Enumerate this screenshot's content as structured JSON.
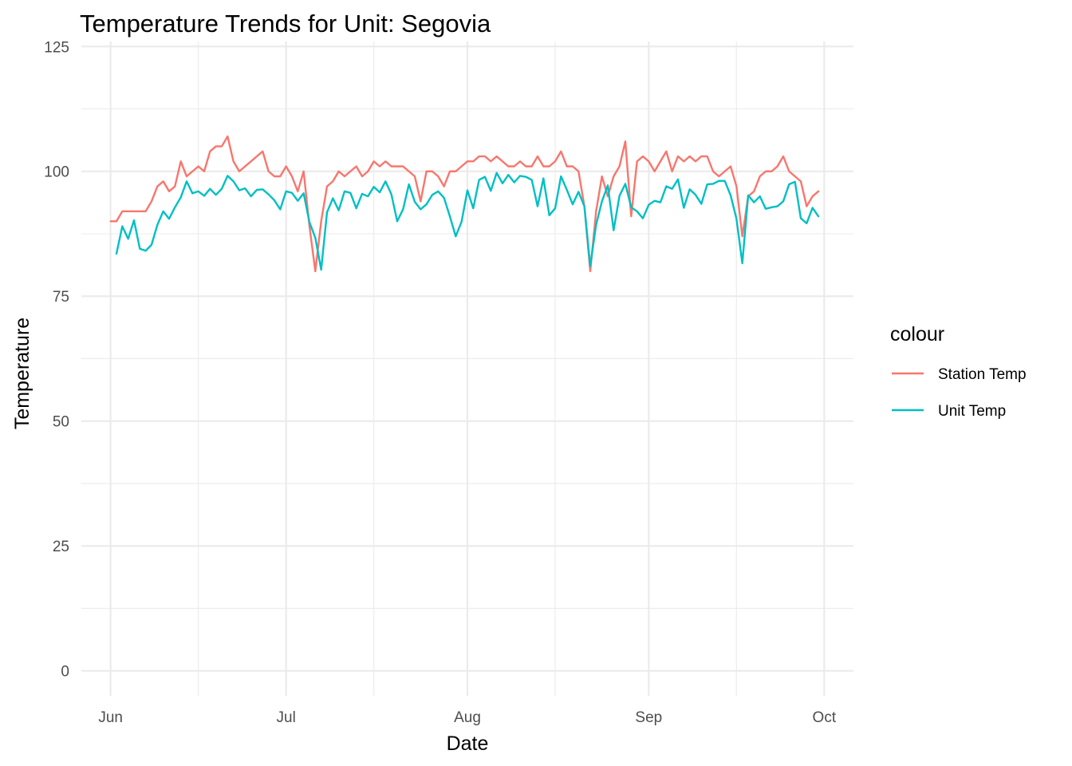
{
  "chart_data": {
    "type": "line",
    "title": "Temperature Trends for Unit: Segovia",
    "xlabel": "Date",
    "ylabel": "Temperature",
    "xlim": [
      "2024-05-27",
      "2024-10-06"
    ],
    "ylim": [
      -5,
      126
    ],
    "x_ticks": [
      {
        "date": "2024-06-01",
        "label": "Jun"
      },
      {
        "date": "2024-07-01",
        "label": "Jul"
      },
      {
        "date": "2024-08-01",
        "label": "Aug"
      },
      {
        "date": "2024-09-01",
        "label": "Sep"
      },
      {
        "date": "2024-10-01",
        "label": "Oct"
      }
    ],
    "x_minor_ticks": [
      "2024-06-16",
      "2024-07-16",
      "2024-08-16",
      "2024-09-16"
    ],
    "y_ticks": [
      0,
      25,
      50,
      75,
      100,
      125
    ],
    "y_minor_ticks": [
      12.5,
      37.5,
      62.5,
      87.5,
      112.5
    ],
    "grid": true,
    "legend_title": "colour",
    "legend_position": "right",
    "series": [
      {
        "name": "Station Temp",
        "color": "#F8766D",
        "points": [
          [
            "2024-06-01",
            90
          ],
          [
            "2024-06-02",
            90
          ],
          [
            "2024-06-03",
            92
          ],
          [
            "2024-06-04",
            92
          ],
          [
            "2024-06-05",
            92
          ],
          [
            "2024-06-06",
            92
          ],
          [
            "2024-06-07",
            92
          ],
          [
            "2024-06-08",
            94
          ],
          [
            "2024-06-09",
            97
          ],
          [
            "2024-06-10",
            98
          ],
          [
            "2024-06-11",
            96
          ],
          [
            "2024-06-12",
            97
          ],
          [
            "2024-06-13",
            102
          ],
          [
            "2024-06-14",
            99
          ],
          [
            "2024-06-15",
            100
          ],
          [
            "2024-06-16",
            101
          ],
          [
            "2024-06-17",
            100
          ],
          [
            "2024-06-18",
            104
          ],
          [
            "2024-06-19",
            105
          ],
          [
            "2024-06-20",
            105
          ],
          [
            "2024-06-21",
            107
          ],
          [
            "2024-06-22",
            102
          ],
          [
            "2024-06-23",
            100
          ],
          [
            "2024-06-27",
            104
          ],
          [
            "2024-06-28",
            100
          ],
          [
            "2024-06-29",
            99
          ],
          [
            "2024-06-30",
            99
          ],
          [
            "2024-07-01",
            101
          ],
          [
            "2024-07-02",
            99
          ],
          [
            "2024-07-03",
            96
          ],
          [
            "2024-07-04",
            100
          ],
          [
            "2024-07-05",
            89
          ],
          [
            "2024-07-06",
            80
          ],
          [
            "2024-07-07",
            90
          ],
          [
            "2024-07-08",
            97
          ],
          [
            "2024-07-09",
            98
          ],
          [
            "2024-07-10",
            100
          ],
          [
            "2024-07-11",
            99
          ],
          [
            "2024-07-12",
            100
          ],
          [
            "2024-07-13",
            101
          ],
          [
            "2024-07-14",
            99
          ],
          [
            "2024-07-15",
            100
          ],
          [
            "2024-07-16",
            102
          ],
          [
            "2024-07-17",
            101
          ],
          [
            "2024-07-18",
            102
          ],
          [
            "2024-07-19",
            101
          ],
          [
            "2024-07-20",
            101
          ],
          [
            "2024-07-21",
            101
          ],
          [
            "2024-07-22",
            100
          ],
          [
            "2024-07-23",
            99
          ],
          [
            "2024-07-24",
            94
          ],
          [
            "2024-07-25",
            100
          ],
          [
            "2024-07-26",
            100
          ],
          [
            "2024-07-27",
            99
          ],
          [
            "2024-07-28",
            97
          ],
          [
            "2024-07-29",
            100
          ],
          [
            "2024-07-30",
            100
          ],
          [
            "2024-07-31",
            101
          ],
          [
            "2024-08-01",
            102
          ],
          [
            "2024-08-02",
            102
          ],
          [
            "2024-08-03",
            103
          ],
          [
            "2024-08-04",
            103
          ],
          [
            "2024-08-05",
            102
          ],
          [
            "2024-08-06",
            103
          ],
          [
            "2024-08-07",
            102
          ],
          [
            "2024-08-08",
            101
          ],
          [
            "2024-08-09",
            101
          ],
          [
            "2024-08-10",
            102
          ],
          [
            "2024-08-11",
            101
          ],
          [
            "2024-08-12",
            101
          ],
          [
            "2024-08-13",
            103
          ],
          [
            "2024-08-14",
            101
          ],
          [
            "2024-08-15",
            101
          ],
          [
            "2024-08-16",
            102
          ],
          [
            "2024-08-17",
            104
          ],
          [
            "2024-08-18",
            101
          ],
          [
            "2024-08-19",
            101
          ],
          [
            "2024-08-20",
            100
          ],
          [
            "2024-08-21",
            93
          ],
          [
            "2024-08-22",
            80
          ],
          [
            "2024-08-23",
            92
          ],
          [
            "2024-08-24",
            99
          ],
          [
            "2024-08-25",
            95
          ],
          [
            "2024-08-26",
            99
          ],
          [
            "2024-08-27",
            101
          ],
          [
            "2024-08-28",
            106
          ],
          [
            "2024-08-29",
            91
          ],
          [
            "2024-08-30",
            102
          ],
          [
            "2024-08-31",
            103
          ],
          [
            "2024-09-01",
            102
          ],
          [
            "2024-09-02",
            100
          ],
          [
            "2024-09-03",
            102
          ],
          [
            "2024-09-04",
            104
          ],
          [
            "2024-09-05",
            100
          ],
          [
            "2024-09-06",
            103
          ],
          [
            "2024-09-07",
            102
          ],
          [
            "2024-09-08",
            103
          ],
          [
            "2024-09-09",
            102
          ],
          [
            "2024-09-10",
            103
          ],
          [
            "2024-09-11",
            103
          ],
          [
            "2024-09-12",
            100
          ],
          [
            "2024-09-13",
            99
          ],
          [
            "2024-09-14",
            100
          ],
          [
            "2024-09-15",
            101
          ],
          [
            "2024-09-16",
            97
          ],
          [
            "2024-09-17",
            87
          ],
          [
            "2024-09-18",
            95
          ],
          [
            "2024-09-19",
            96
          ],
          [
            "2024-09-20",
            99
          ],
          [
            "2024-09-21",
            100
          ],
          [
            "2024-09-22",
            100
          ],
          [
            "2024-09-23",
            101
          ],
          [
            "2024-09-24",
            103
          ],
          [
            "2024-09-25",
            100
          ],
          [
            "2024-09-26",
            99
          ],
          [
            "2024-09-27",
            98
          ],
          [
            "2024-09-28",
            93
          ],
          [
            "2024-09-29",
            95
          ],
          [
            "2024-09-30",
            96
          ]
        ]
      },
      {
        "name": "Unit Temp",
        "color": "#00BFC4",
        "points": [
          [
            "2024-06-02",
            83.5
          ],
          [
            "2024-06-03",
            89
          ],
          [
            "2024-06-04",
            86.5
          ],
          [
            "2024-06-05",
            90.2
          ],
          [
            "2024-06-06",
            84.5
          ],
          [
            "2024-06-07",
            84.1
          ],
          [
            "2024-06-08",
            85.3
          ],
          [
            "2024-06-09",
            89.3
          ],
          [
            "2024-06-10",
            92
          ],
          [
            "2024-06-11",
            90.5
          ],
          [
            "2024-06-12",
            92.8
          ],
          [
            "2024-06-13",
            94.8
          ],
          [
            "2024-06-14",
            98
          ],
          [
            "2024-06-15",
            95.6
          ],
          [
            "2024-06-16",
            96
          ],
          [
            "2024-06-17",
            95.1
          ],
          [
            "2024-06-18",
            96.5
          ],
          [
            "2024-06-19",
            95.3
          ],
          [
            "2024-06-20",
            96.5
          ],
          [
            "2024-06-21",
            99.1
          ],
          [
            "2024-06-22",
            98
          ],
          [
            "2024-06-23",
            96.2
          ],
          [
            "2024-06-24",
            96.6
          ],
          [
            "2024-06-25",
            95
          ],
          [
            "2024-06-26",
            96.3
          ],
          [
            "2024-06-27",
            96.4
          ],
          [
            "2024-06-28",
            95.4
          ],
          [
            "2024-06-29",
            94.2
          ],
          [
            "2024-06-30",
            92.4
          ],
          [
            "2024-07-01",
            96
          ],
          [
            "2024-07-02",
            95.7
          ],
          [
            "2024-07-03",
            94.1
          ],
          [
            "2024-07-04",
            95.6
          ],
          [
            "2024-07-05",
            89.8
          ],
          [
            "2024-07-06",
            86.7
          ],
          [
            "2024-07-07",
            80.3
          ],
          [
            "2024-07-08",
            91.8
          ],
          [
            "2024-07-09",
            94.6
          ],
          [
            "2024-07-10",
            92.2
          ],
          [
            "2024-07-11",
            96
          ],
          [
            "2024-07-12",
            95.7
          ],
          [
            "2024-07-13",
            92.6
          ],
          [
            "2024-07-14",
            95.5
          ],
          [
            "2024-07-15",
            95
          ],
          [
            "2024-07-16",
            96.9
          ],
          [
            "2024-07-17",
            95.8
          ],
          [
            "2024-07-18",
            98
          ],
          [
            "2024-07-19",
            95.4
          ],
          [
            "2024-07-20",
            90
          ],
          [
            "2024-07-21",
            92.4
          ],
          [
            "2024-07-22",
            97.4
          ],
          [
            "2024-07-23",
            93.9
          ],
          [
            "2024-07-24",
            92.4
          ],
          [
            "2024-07-25",
            93.4
          ],
          [
            "2024-07-26",
            95.3
          ],
          [
            "2024-07-27",
            96
          ],
          [
            "2024-07-28",
            94.7
          ],
          [
            "2024-07-29",
            91
          ],
          [
            "2024-07-30",
            87
          ],
          [
            "2024-07-31",
            89.9
          ],
          [
            "2024-08-01",
            96.2
          ],
          [
            "2024-08-02",
            92.6
          ],
          [
            "2024-08-03",
            98.3
          ],
          [
            "2024-08-04",
            98.9
          ],
          [
            "2024-08-05",
            96.1
          ],
          [
            "2024-08-06",
            99.7
          ],
          [
            "2024-08-07",
            97.6
          ],
          [
            "2024-08-08",
            99.3
          ],
          [
            "2024-08-09",
            97.8
          ],
          [
            "2024-08-10",
            99.1
          ],
          [
            "2024-08-11",
            98.9
          ],
          [
            "2024-08-12",
            98.3
          ],
          [
            "2024-08-13",
            93
          ],
          [
            "2024-08-14",
            98.6
          ],
          [
            "2024-08-15",
            91.2
          ],
          [
            "2024-08-16",
            92.6
          ],
          [
            "2024-08-17",
            99
          ],
          [
            "2024-08-18",
            96.3
          ],
          [
            "2024-08-19",
            93.4
          ],
          [
            "2024-08-20",
            95.9
          ],
          [
            "2024-08-21",
            93
          ],
          [
            "2024-08-22",
            81
          ],
          [
            "2024-08-23",
            89.3
          ],
          [
            "2024-08-24",
            94
          ],
          [
            "2024-08-25",
            97.2
          ],
          [
            "2024-08-26",
            88.2
          ],
          [
            "2024-08-27",
            95.1
          ],
          [
            "2024-08-28",
            97.5
          ],
          [
            "2024-08-29",
            92.8
          ],
          [
            "2024-08-30",
            92
          ],
          [
            "2024-08-31",
            90.6
          ],
          [
            "2024-09-01",
            93.3
          ],
          [
            "2024-09-02",
            94.1
          ],
          [
            "2024-09-03",
            93.8
          ],
          [
            "2024-09-04",
            97
          ],
          [
            "2024-09-05",
            96.5
          ],
          [
            "2024-09-06",
            98.4
          ],
          [
            "2024-09-07",
            92.7
          ],
          [
            "2024-09-08",
            96.4
          ],
          [
            "2024-09-09",
            95.3
          ],
          [
            "2024-09-10",
            93.5
          ],
          [
            "2024-09-11",
            97.4
          ],
          [
            "2024-09-12",
            97.5
          ],
          [
            "2024-09-13",
            98.1
          ],
          [
            "2024-09-14",
            98.1
          ],
          [
            "2024-09-15",
            95.2
          ],
          [
            "2024-09-16",
            90.5
          ],
          [
            "2024-09-17",
            81.6
          ],
          [
            "2024-09-18",
            95.2
          ],
          [
            "2024-09-19",
            93.8
          ],
          [
            "2024-09-20",
            95
          ],
          [
            "2024-09-21",
            92.5
          ],
          [
            "2024-09-22",
            92.8
          ],
          [
            "2024-09-23",
            93
          ],
          [
            "2024-09-24",
            94
          ],
          [
            "2024-09-25",
            97.4
          ],
          [
            "2024-09-26",
            97.9
          ],
          [
            "2024-09-27",
            90.6
          ],
          [
            "2024-09-28",
            89.6
          ],
          [
            "2024-09-29",
            92.7
          ],
          [
            "2024-09-30",
            91
          ]
        ]
      }
    ]
  }
}
